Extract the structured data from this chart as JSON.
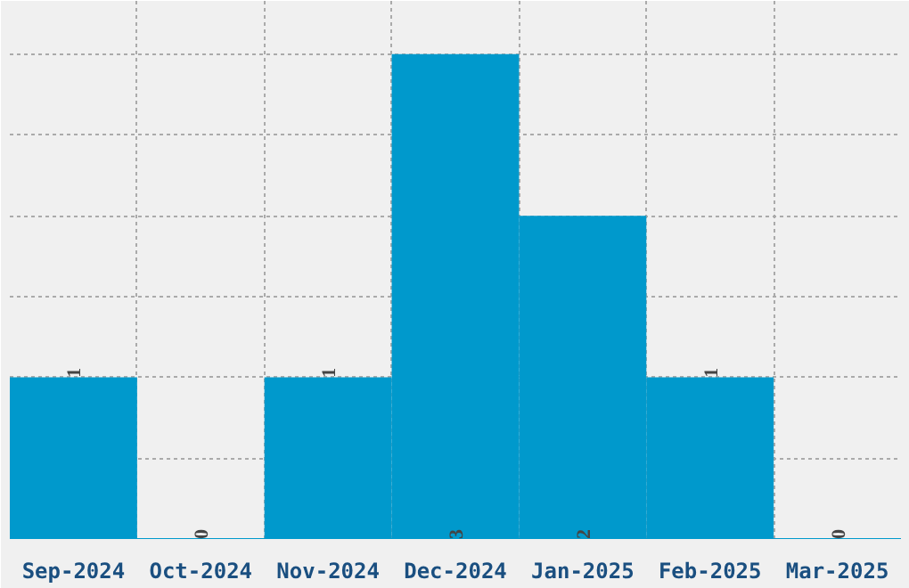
{
  "chart_data": {
    "type": "bar",
    "categories": [
      "Sep-2024",
      "Oct-2024",
      "Nov-2024",
      "Dec-2024",
      "Jan-2025",
      "Feb-2025",
      "Mar-2025"
    ],
    "values": [
      1,
      0,
      1,
      3,
      2,
      1,
      0
    ],
    "color": "#0099cc",
    "ylim": [
      0,
      3.33
    ],
    "tick_labels": "x",
    "grid": true,
    "data_labels": true
  }
}
